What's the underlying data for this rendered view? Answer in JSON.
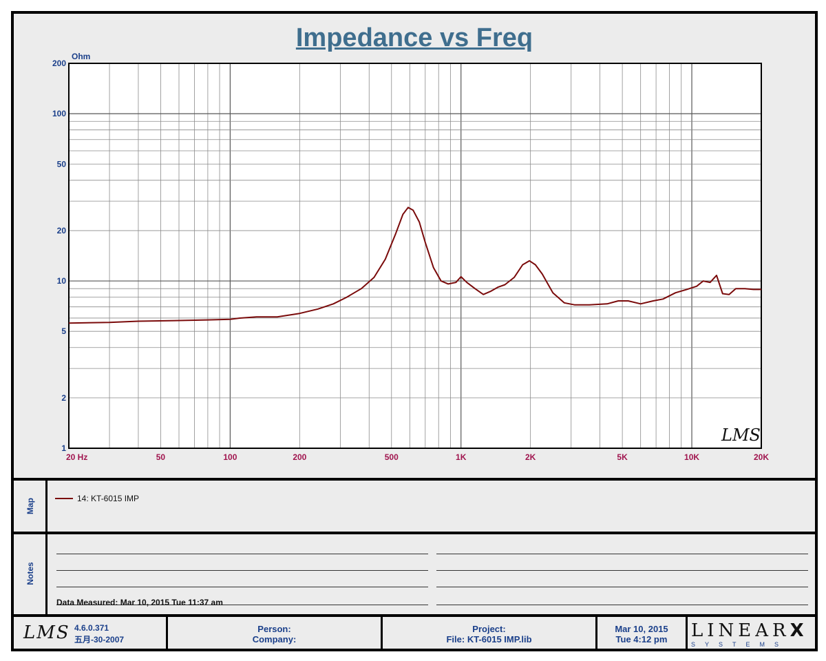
{
  "chart_data": {
    "type": "line",
    "title": "Impedance vs Freq",
    "ylabel_unit": "Ohm",
    "xscale": "log",
    "yscale": "log",
    "xlim": [
      20,
      20000
    ],
    "ylim": [
      1,
      200
    ],
    "grid": true,
    "x_tick_labels": [
      {
        "v": 20,
        "t": "20  Hz"
      },
      {
        "v": 50,
        "t": "50"
      },
      {
        "v": 100,
        "t": "100"
      },
      {
        "v": 200,
        "t": "200"
      },
      {
        "v": 500,
        "t": "500"
      },
      {
        "v": 1000,
        "t": "1K"
      },
      {
        "v": 2000,
        "t": "2K"
      },
      {
        "v": 5000,
        "t": "5K"
      },
      {
        "v": 10000,
        "t": "10K"
      },
      {
        "v": 20000,
        "t": "20K"
      }
    ],
    "y_tick_labels": [
      {
        "v": 200,
        "t": "200"
      },
      {
        "v": 100,
        "t": "100"
      },
      {
        "v": 50,
        "t": "50"
      },
      {
        "v": 20,
        "t": "20"
      },
      {
        "v": 10,
        "t": "10"
      },
      {
        "v": 5,
        "t": "5"
      },
      {
        "v": 2,
        "t": "2"
      },
      {
        "v": 1,
        "t": "1"
      }
    ],
    "series": [
      {
        "name": "14: KT-6015  IMP",
        "color": "#7a0a0a",
        "points": [
          [
            20,
            5.6
          ],
          [
            30,
            5.65
          ],
          [
            40,
            5.75
          ],
          [
            60,
            5.8
          ],
          [
            80,
            5.85
          ],
          [
            100,
            5.9
          ],
          [
            110,
            6.0
          ],
          [
            130,
            6.1
          ],
          [
            160,
            6.1
          ],
          [
            200,
            6.4
          ],
          [
            240,
            6.8
          ],
          [
            280,
            7.3
          ],
          [
            320,
            8.0
          ],
          [
            370,
            9.0
          ],
          [
            420,
            10.5
          ],
          [
            470,
            13.5
          ],
          [
            520,
            19.0
          ],
          [
            560,
            25.0
          ],
          [
            590,
            27.5
          ],
          [
            620,
            26.5
          ],
          [
            660,
            22.5
          ],
          [
            700,
            17.0
          ],
          [
            760,
            12.0
          ],
          [
            820,
            10.0
          ],
          [
            880,
            9.6
          ],
          [
            950,
            9.8
          ],
          [
            1000,
            10.6
          ],
          [
            1060,
            9.8
          ],
          [
            1150,
            9.0
          ],
          [
            1250,
            8.3
          ],
          [
            1350,
            8.7
          ],
          [
            1450,
            9.2
          ],
          [
            1550,
            9.5
          ],
          [
            1700,
            10.5
          ],
          [
            1850,
            12.5
          ],
          [
            1980,
            13.2
          ],
          [
            2100,
            12.5
          ],
          [
            2250,
            11.0
          ],
          [
            2500,
            8.5
          ],
          [
            2800,
            7.4
          ],
          [
            3100,
            7.2
          ],
          [
            3600,
            7.2
          ],
          [
            4300,
            7.3
          ],
          [
            4800,
            7.6
          ],
          [
            5300,
            7.6
          ],
          [
            6000,
            7.3
          ],
          [
            6800,
            7.6
          ],
          [
            7500,
            7.8
          ],
          [
            8500,
            8.5
          ],
          [
            9500,
            8.9
          ],
          [
            10500,
            9.3
          ],
          [
            11200,
            10.0
          ],
          [
            12000,
            9.8
          ],
          [
            12800,
            10.8
          ],
          [
            13600,
            8.4
          ],
          [
            14500,
            8.3
          ],
          [
            15500,
            9.0
          ],
          [
            17000,
            9.0
          ],
          [
            18500,
            8.9
          ],
          [
            20000,
            8.9
          ]
        ]
      }
    ]
  },
  "watermark": "LMS",
  "map": {
    "label": "Map",
    "legend_label": "14: KT-6015  IMP"
  },
  "notes": {
    "label": "Notes",
    "data_measured": "Data Measured: Mar 10, 2015  Tue 11:37 am"
  },
  "footer": {
    "logo": "LMS",
    "version": "4.6.0.371",
    "version_date": "五月-30-2007",
    "person_label": "Person:",
    "company_label": "Company:",
    "project_label": "Project:",
    "file_label": "File: KT-6015 IMP.lib",
    "date": "Mar 10, 2015",
    "time": "Tue  4:12 pm",
    "brand": "LINEAR",
    "brand_mark": "X",
    "brand_sub": "SYSTEMS"
  }
}
